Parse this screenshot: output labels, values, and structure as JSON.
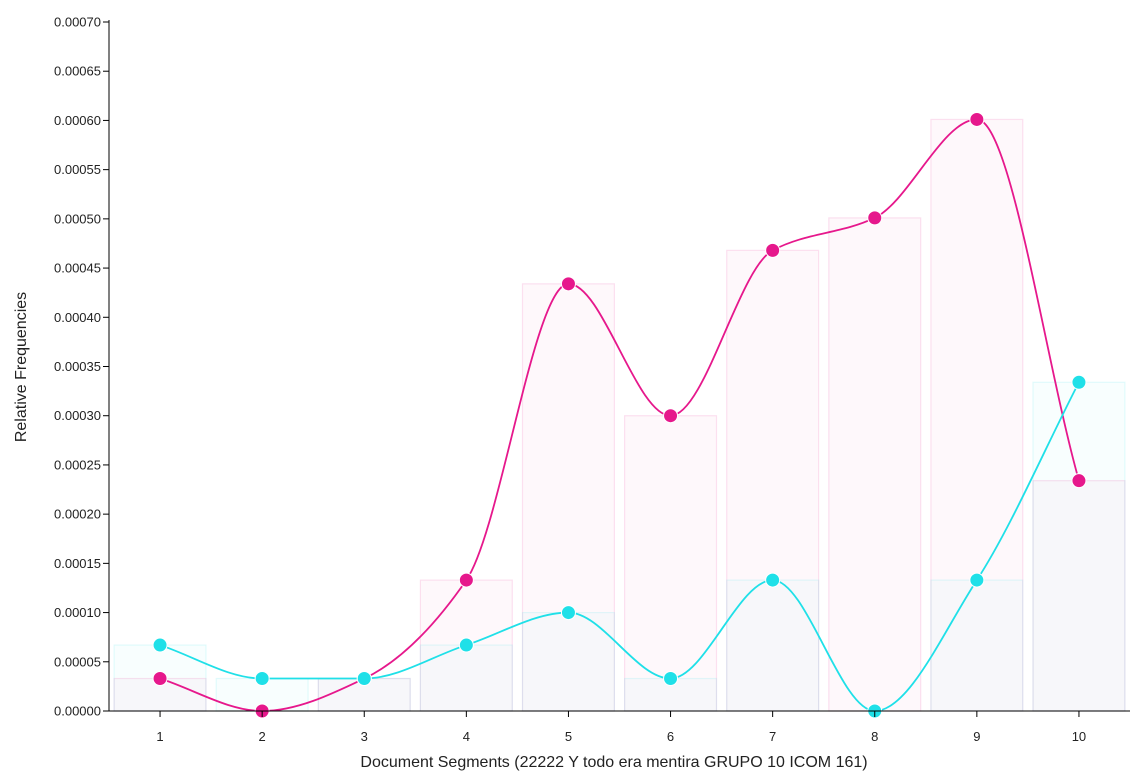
{
  "chart_data": {
    "type": "bar",
    "xlabel": "Document Segments (22222 Y todo era mentira GRUPO 10 ICOM 161)",
    "ylabel": "Relative Frequencies",
    "categories": [
      "1",
      "2",
      "3",
      "4",
      "5",
      "6",
      "7",
      "8",
      "9",
      "10"
    ],
    "ylim": [
      0,
      0.0007
    ],
    "yticks": [
      "0.00000",
      "0.00005",
      "0.00010",
      "0.00015",
      "0.00020",
      "0.00025",
      "0.00030",
      "0.00035",
      "0.00040",
      "0.00045",
      "0.00050",
      "0.00055",
      "0.00060",
      "0.00065",
      "0.00070"
    ],
    "grid": false,
    "legend": "none",
    "overlay": "smooth line with markers per series",
    "series": [
      {
        "color": "#e6188c",
        "values": [
          3.3e-05,
          0.0,
          3.3e-05,
          0.000133,
          0.000434,
          0.0003,
          0.000468,
          0.000501,
          0.000601,
          0.000234
        ]
      },
      {
        "color": "#1fe0e8",
        "values": [
          6.7e-05,
          3.3e-05,
          3.3e-05,
          6.7e-05,
          0.0001,
          3.3e-05,
          0.000133,
          0.0,
          0.000133,
          0.000334
        ]
      }
    ]
  }
}
